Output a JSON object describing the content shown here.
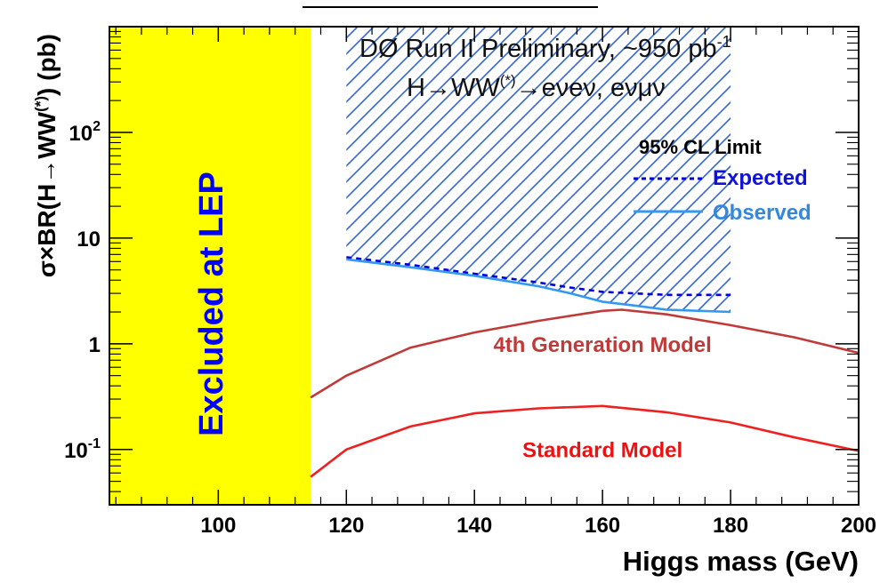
{
  "chart_data": {
    "type": "line",
    "title": "DØ Run II Preliminary, ~950 pb",
    "title_sup": "-1",
    "subtitle": {
      "base": "H→WW",
      "sup": "(*)",
      "rest": "→eνeν, eνμν"
    },
    "xlabel": "Higgs mass (GeV)",
    "ylabel": {
      "base": "σ×BR(H→WW",
      "sup": "(*)",
      "rest": ") (pb)"
    },
    "xlim": [
      83,
      200
    ],
    "ylim": [
      0.03,
      1000
    ],
    "y_scale": "log",
    "grid": false,
    "x_ticks": [
      {
        "value": 100,
        "label": "100"
      },
      {
        "value": 120,
        "label": "120"
      },
      {
        "value": 140,
        "label": "140"
      },
      {
        "value": 160,
        "label": "160"
      },
      {
        "value": 180,
        "label": "180"
      },
      {
        "value": 200,
        "label": "200"
      }
    ],
    "y_ticks": [
      {
        "value": 0.1,
        "base": "10",
        "sup": "-1"
      },
      {
        "value": 1,
        "base": "1",
        "sup": ""
      },
      {
        "value": 10,
        "base": "10",
        "sup": ""
      },
      {
        "value": 100,
        "base": "10",
        "sup": "2"
      }
    ],
    "excluded_region": {
      "x_range": [
        83,
        114.4
      ],
      "label": "Excluded at LEP",
      "fill_color": "#ffff00",
      "text_color": "#0000ff"
    },
    "limit_region": {
      "x_range": [
        120,
        180
      ],
      "hatch_color": "#3366cc"
    },
    "legend": {
      "title": "95% CL Limit",
      "placement": "top-right",
      "entries": [
        "Expected",
        "Observed"
      ]
    },
    "series": [
      {
        "name": "Expected",
        "color": "#0000dd",
        "style": "dashed",
        "x": [
          120,
          130,
          140,
          150,
          155,
          160,
          165,
          170,
          180
        ],
        "y": [
          6.6,
          5.6,
          4.6,
          3.8,
          3.4,
          3.1,
          3.0,
          2.9,
          2.9
        ]
      },
      {
        "name": "Observed",
        "color": "#3399ee",
        "style": "solid",
        "x": [
          120,
          130,
          140,
          150,
          155,
          160,
          165,
          170,
          180
        ],
        "y": [
          6.3,
          5.3,
          4.4,
          3.5,
          3.0,
          2.5,
          2.3,
          2.1,
          2.0
        ]
      },
      {
        "name": "4th Generation Model",
        "color": "#c03a3a",
        "style": "solid",
        "x": [
          114.4,
          120,
          130,
          140,
          150,
          160,
          163,
          170,
          180,
          190,
          200
        ],
        "y": [
          0.31,
          0.5,
          0.92,
          1.28,
          1.65,
          2.05,
          2.1,
          1.9,
          1.5,
          1.15,
          0.82
        ]
      },
      {
        "name": "Standard Model",
        "color": "#ee2020",
        "style": "solid",
        "x": [
          114.4,
          120,
          130,
          140,
          150,
          160,
          170,
          180,
          190,
          200
        ],
        "y": [
          0.055,
          0.1,
          0.165,
          0.22,
          0.245,
          0.258,
          0.225,
          0.18,
          0.13,
          0.097
        ]
      }
    ],
    "annotations": [
      {
        "text": "4th Generation Model",
        "x": 160,
        "y": 0.98,
        "color": "#c03a3a"
      },
      {
        "text": "Standard Model",
        "x": 160,
        "y": 0.099,
        "color": "#ee1111"
      }
    ]
  }
}
